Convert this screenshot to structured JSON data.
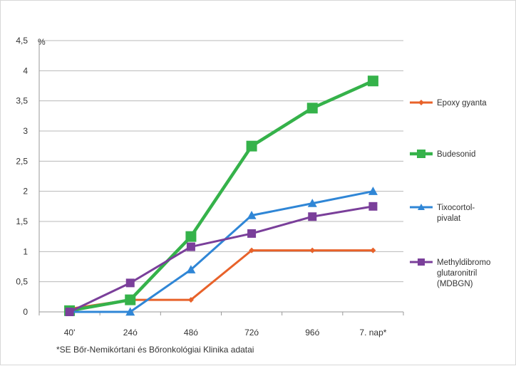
{
  "chart_data": {
    "type": "line",
    "title": "",
    "unit_label": "%",
    "categories": [
      "40'",
      "24ó",
      "48ó",
      "72ó",
      "96ó",
      "7. nap*"
    ],
    "ylim": [
      0,
      4.5
    ],
    "yticks": [
      "0",
      "0,5",
      "1",
      "1,5",
      "2",
      "2,5",
      "3",
      "3,5",
      "4",
      "4,5"
    ],
    "grid": true,
    "legend_position": "right",
    "footnote": "*SE Bőr-Nemikórtani és Bőronkológiai Klinika adatai",
    "series": [
      {
        "name": "Epoxy gyanta",
        "color": "#e8622a",
        "marker": "diamond",
        "values": [
          0.05,
          0.2,
          0.2,
          1.02,
          1.02,
          1.02
        ]
      },
      {
        "name": "Budesonid",
        "color": "#35b24a",
        "marker": "square",
        "values": [
          0.02,
          0.2,
          1.25,
          2.75,
          3.38,
          3.83
        ]
      },
      {
        "name": "Tixocortol-pivalat",
        "color": "#2f86d6",
        "marker": "triangle",
        "values": [
          0.0,
          0.0,
          0.7,
          1.6,
          1.8,
          2.0
        ]
      },
      {
        "name": "Methyldibromo glutaronitril (MDBGN)",
        "color": "#7a3f9a",
        "marker": "square",
        "values": [
          0.0,
          0.48,
          1.08,
          1.3,
          1.58,
          1.75
        ]
      }
    ],
    "legend_lines": [
      [
        "Epoxy gyanta"
      ],
      [
        "Budesonid"
      ],
      [
        "Tixocortol-",
        "pivalat"
      ],
      [
        "Methyldibromo",
        "glutaronitril",
        "(MDBGN)"
      ]
    ]
  }
}
